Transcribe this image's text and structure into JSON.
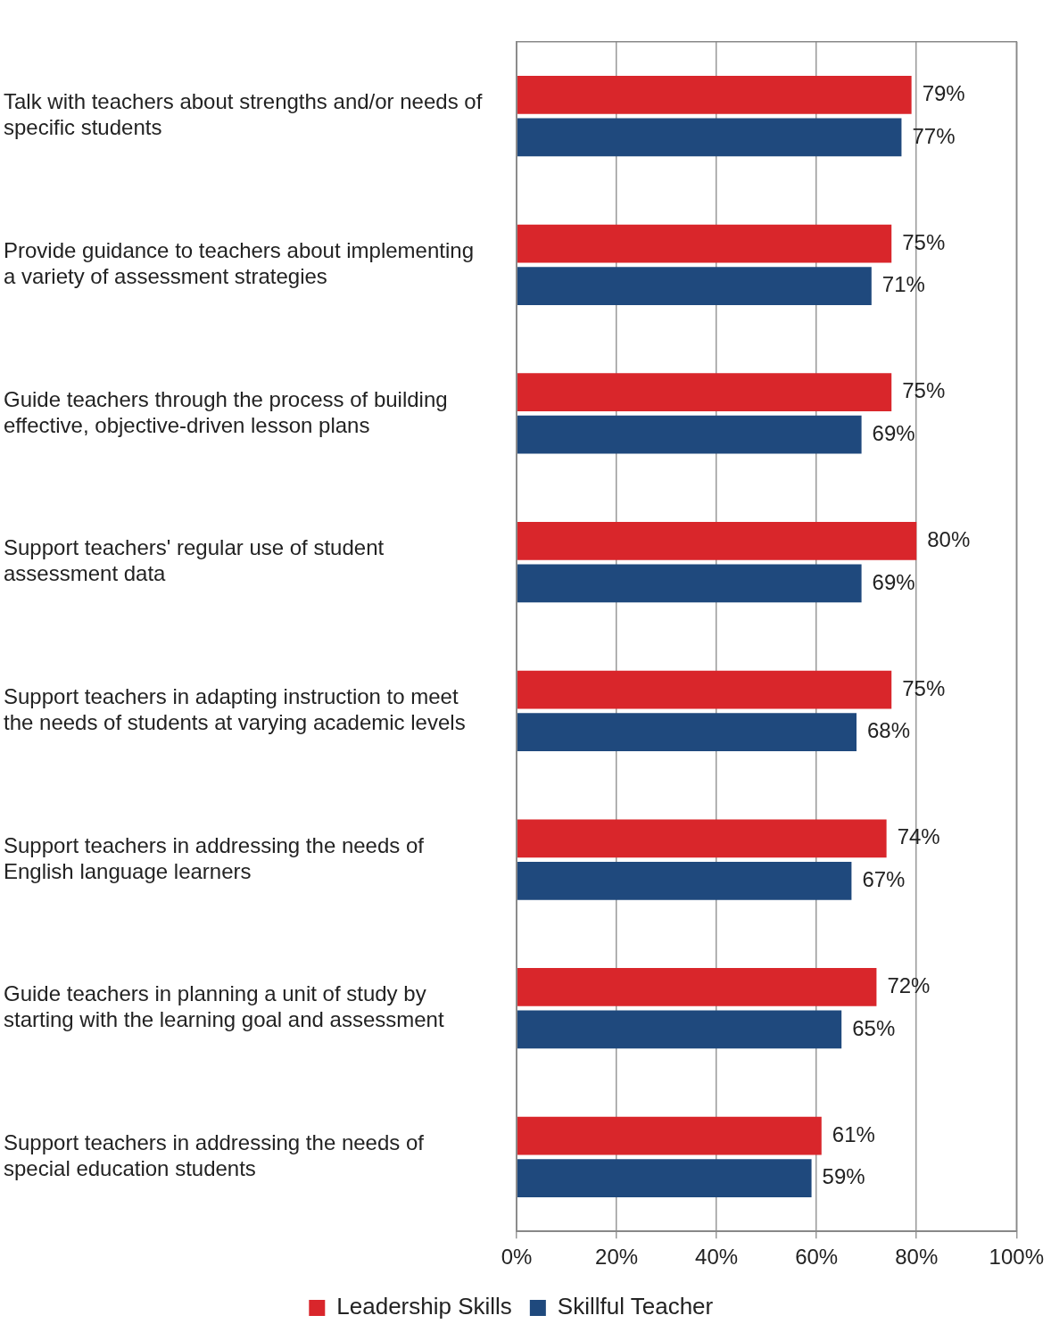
{
  "chart_data": {
    "type": "bar",
    "orientation": "horizontal",
    "categories": [
      "Talk with teachers about strengths and/or needs of specific students",
      "Provide guidance to teachers about implementing a variety of assessment strategies",
      "Guide teachers through the process of building effective, objective-driven lesson plans",
      "Support teachers' regular use of student assessment data",
      "Support teachers in adapting instruction to meet the needs of students at varying academic levels",
      "Support teachers in addressing the needs of English language learners",
      "Guide teachers in planning a unit of study by starting with the learning goal and assessment",
      "Support teachers in addressing the needs of special education students"
    ],
    "series": [
      {
        "name": "Leadership Skills",
        "color": "#d9262b",
        "values": [
          79,
          75,
          75,
          80,
          75,
          74,
          72,
          61
        ],
        "value_labels": [
          "79%",
          "75%",
          "75%",
          "80%",
          "75%",
          "74%",
          "72%",
          "61%"
        ]
      },
      {
        "name": "Skillful Teacher",
        "color": "#1f497d",
        "values": [
          77,
          71,
          69,
          69,
          68,
          67,
          65,
          59
        ],
        "value_labels": [
          "77%",
          "71%",
          "69%",
          "69%",
          "68%",
          "67%",
          "65%",
          "59%"
        ]
      }
    ],
    "xlim": [
      0,
      100
    ],
    "xticks": [
      {
        "value": 0,
        "label": "0%"
      },
      {
        "value": 20,
        "label": "20%"
      },
      {
        "value": 40,
        "label": "40%"
      },
      {
        "value": 60,
        "label": "60%"
      },
      {
        "value": 80,
        "label": "80%"
      },
      {
        "value": 100,
        "label": "100%"
      }
    ],
    "grid": "x",
    "legend": "bottom"
  }
}
